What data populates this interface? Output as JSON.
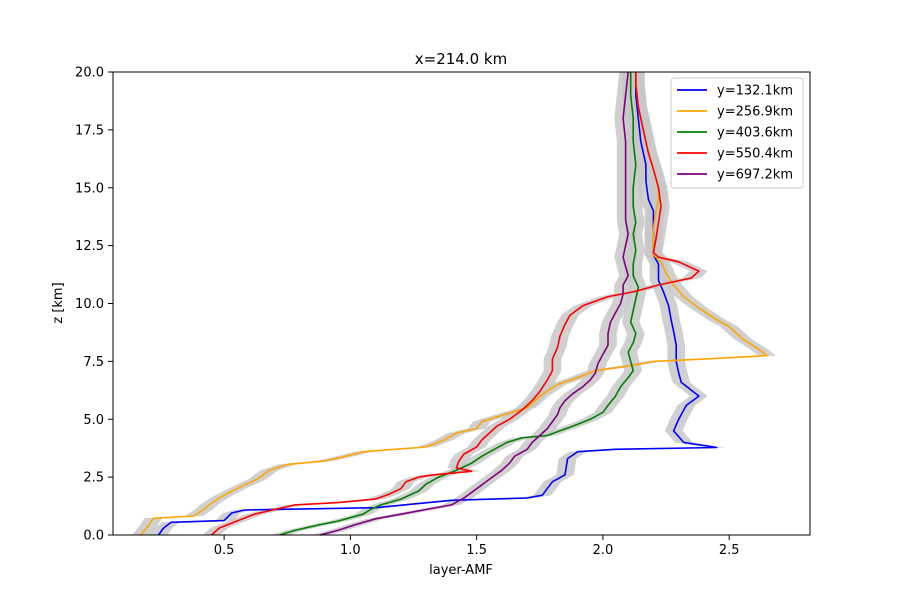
{
  "chart_data": {
    "type": "line",
    "title": "x=214.0 km",
    "xlabel": "layer-AMF",
    "ylabel": "z [km]",
    "xlim": [
      0.06,
      2.82
    ],
    "ylim": [
      0,
      20
    ],
    "xticks": [
      "0.5",
      "1.0",
      "1.5",
      "2.0",
      "2.5"
    ],
    "xtick_values": [
      0.5,
      1.0,
      1.5,
      2.0,
      2.5
    ],
    "yticks": [
      "0.0",
      "2.5",
      "5.0",
      "7.5",
      "10.0",
      "12.5",
      "15.0",
      "17.5",
      "20.0"
    ],
    "ytick_values": [
      0,
      2.5,
      5,
      7.5,
      10,
      12.5,
      15,
      17.5,
      20
    ],
    "grid": false,
    "legend_position": "top-right",
    "uncertainty_band": {
      "color": "#c8c8c8",
      "halfwidth": 0.035
    },
    "series": [
      {
        "name": "y=132.1km",
        "color": "#0000ff",
        "points": [
          [
            0.24,
            0.0
          ],
          [
            0.26,
            0.3
          ],
          [
            0.29,
            0.55
          ],
          [
            0.5,
            0.62
          ],
          [
            0.53,
            0.95
          ],
          [
            0.58,
            1.08
          ],
          [
            1.1,
            1.18
          ],
          [
            1.4,
            1.5
          ],
          [
            1.7,
            1.6
          ],
          [
            1.76,
            1.72
          ],
          [
            1.8,
            2.3
          ],
          [
            1.85,
            2.6
          ],
          [
            1.86,
            3.3
          ],
          [
            1.9,
            3.6
          ],
          [
            2.05,
            3.7
          ],
          [
            2.45,
            3.78
          ],
          [
            2.32,
            4.0
          ],
          [
            2.28,
            4.5
          ],
          [
            2.3,
            5.0
          ],
          [
            2.33,
            5.6
          ],
          [
            2.38,
            6.0
          ],
          [
            2.31,
            6.6
          ],
          [
            2.3,
            7.0
          ],
          [
            2.29,
            7.5
          ],
          [
            2.29,
            8.2
          ],
          [
            2.28,
            8.8
          ],
          [
            2.27,
            9.3
          ],
          [
            2.26,
            9.9
          ],
          [
            2.24,
            10.5
          ],
          [
            2.22,
            11.0
          ],
          [
            2.22,
            11.7
          ],
          [
            2.2,
            12.1
          ],
          [
            2.2,
            12.6
          ],
          [
            2.2,
            13.2
          ],
          [
            2.2,
            14.0
          ],
          [
            2.18,
            14.5
          ],
          [
            2.17,
            15.3
          ],
          [
            2.17,
            16.0
          ],
          [
            2.15,
            17.0
          ],
          [
            2.14,
            18.0
          ],
          [
            2.13,
            19.0
          ],
          [
            2.13,
            20.0
          ]
        ]
      },
      {
        "name": "y=256.9km",
        "color": "#ffa500",
        "points": [
          [
            0.17,
            0.0
          ],
          [
            0.2,
            0.4
          ],
          [
            0.22,
            0.72
          ],
          [
            0.38,
            0.82
          ],
          [
            0.42,
            1.1
          ],
          [
            0.44,
            1.3
          ],
          [
            0.48,
            1.6
          ],
          [
            0.55,
            2.0
          ],
          [
            0.63,
            2.4
          ],
          [
            0.68,
            2.8
          ],
          [
            0.75,
            3.05
          ],
          [
            0.9,
            3.2
          ],
          [
            1.0,
            3.45
          ],
          [
            1.05,
            3.6
          ],
          [
            1.3,
            3.8
          ],
          [
            1.37,
            4.1
          ],
          [
            1.42,
            4.4
          ],
          [
            1.5,
            4.6
          ],
          [
            1.52,
            4.9
          ],
          [
            1.58,
            5.1
          ],
          [
            1.7,
            5.5
          ],
          [
            1.75,
            6.0
          ],
          [
            1.82,
            6.5
          ],
          [
            1.9,
            6.8
          ],
          [
            1.97,
            7.1
          ],
          [
            2.1,
            7.3
          ],
          [
            2.2,
            7.5
          ],
          [
            2.4,
            7.6
          ],
          [
            2.65,
            7.75
          ],
          [
            2.62,
            8.0
          ],
          [
            2.55,
            8.5
          ],
          [
            2.5,
            9.0
          ],
          [
            2.45,
            9.3
          ],
          [
            2.38,
            9.8
          ],
          [
            2.32,
            10.3
          ],
          [
            2.28,
            10.8
          ],
          [
            2.25,
            11.3
          ],
          [
            2.23,
            11.8
          ],
          [
            2.2,
            12.1
          ],
          [
            2.2,
            12.7
          ],
          [
            2.2,
            13.2
          ],
          [
            2.21,
            14.0
          ],
          [
            2.22,
            14.5
          ],
          [
            2.22,
            15.0
          ],
          [
            2.2,
            15.8
          ],
          [
            2.18,
            16.5
          ],
          [
            2.16,
            17.5
          ],
          [
            2.14,
            18.5
          ],
          [
            2.13,
            19.5
          ],
          [
            2.13,
            20.0
          ]
        ]
      },
      {
        "name": "y=403.6km",
        "color": "#008000",
        "points": [
          [
            0.72,
            0.0
          ],
          [
            0.78,
            0.2
          ],
          [
            0.88,
            0.45
          ],
          [
            0.95,
            0.6
          ],
          [
            1.05,
            0.9
          ],
          [
            1.08,
            1.1
          ],
          [
            1.12,
            1.3
          ],
          [
            1.2,
            1.55
          ],
          [
            1.27,
            1.9
          ],
          [
            1.3,
            2.2
          ],
          [
            1.35,
            2.5
          ],
          [
            1.42,
            2.8
          ],
          [
            1.48,
            3.1
          ],
          [
            1.52,
            3.4
          ],
          [
            1.57,
            3.7
          ],
          [
            1.62,
            4.0
          ],
          [
            1.68,
            4.2
          ],
          [
            1.78,
            4.3
          ],
          [
            1.83,
            4.5
          ],
          [
            1.88,
            4.7
          ],
          [
            1.95,
            5.0
          ],
          [
            2.0,
            5.3
          ],
          [
            2.02,
            5.6
          ],
          [
            2.05,
            6.0
          ],
          [
            2.07,
            6.4
          ],
          [
            2.1,
            6.8
          ],
          [
            2.12,
            7.1
          ],
          [
            2.11,
            7.5
          ],
          [
            2.1,
            7.9
          ],
          [
            2.12,
            8.3
          ],
          [
            2.13,
            8.7
          ],
          [
            2.11,
            9.2
          ],
          [
            2.12,
            9.7
          ],
          [
            2.13,
            10.2
          ],
          [
            2.14,
            10.7
          ],
          [
            2.12,
            11.2
          ],
          [
            2.12,
            11.7
          ],
          [
            2.13,
            12.3
          ],
          [
            2.12,
            13.0
          ],
          [
            2.13,
            13.5
          ],
          [
            2.12,
            14.2
          ],
          [
            2.12,
            15.0
          ],
          [
            2.13,
            16.0
          ],
          [
            2.12,
            17.0
          ],
          [
            2.12,
            18.0
          ],
          [
            2.11,
            19.0
          ],
          [
            2.11,
            20.0
          ]
        ]
      },
      {
        "name": "y=550.4km",
        "color": "#ff0000",
        "points": [
          [
            0.45,
            0.0
          ],
          [
            0.48,
            0.3
          ],
          [
            0.55,
            0.6
          ],
          [
            0.62,
            0.9
          ],
          [
            0.7,
            1.1
          ],
          [
            0.78,
            1.3
          ],
          [
            0.95,
            1.4
          ],
          [
            1.1,
            1.55
          ],
          [
            1.15,
            1.75
          ],
          [
            1.2,
            2.0
          ],
          [
            1.22,
            2.3
          ],
          [
            1.27,
            2.5
          ],
          [
            1.33,
            2.6
          ],
          [
            1.48,
            2.75
          ],
          [
            1.42,
            2.9
          ],
          [
            1.43,
            3.2
          ],
          [
            1.45,
            3.5
          ],
          [
            1.5,
            3.8
          ],
          [
            1.52,
            4.1
          ],
          [
            1.55,
            4.4
          ],
          [
            1.58,
            4.7
          ],
          [
            1.63,
            5.0
          ],
          [
            1.68,
            5.4
          ],
          [
            1.72,
            5.8
          ],
          [
            1.75,
            6.2
          ],
          [
            1.78,
            6.7
          ],
          [
            1.8,
            7.1
          ],
          [
            1.8,
            7.6
          ],
          [
            1.82,
            8.1
          ],
          [
            1.83,
            8.6
          ],
          [
            1.85,
            9.1
          ],
          [
            1.87,
            9.5
          ],
          [
            1.92,
            9.9
          ],
          [
            2.02,
            10.3
          ],
          [
            2.12,
            10.5
          ],
          [
            2.22,
            10.8
          ],
          [
            2.35,
            11.1
          ],
          [
            2.38,
            11.4
          ],
          [
            2.3,
            11.8
          ],
          [
            2.22,
            12.0
          ],
          [
            2.2,
            12.2
          ],
          [
            2.21,
            12.8
          ],
          [
            2.22,
            13.5
          ],
          [
            2.23,
            14.2
          ],
          [
            2.22,
            15.0
          ],
          [
            2.2,
            15.8
          ],
          [
            2.18,
            16.5
          ],
          [
            2.16,
            17.5
          ],
          [
            2.14,
            18.5
          ],
          [
            2.13,
            19.5
          ],
          [
            2.13,
            20.0
          ]
        ]
      },
      {
        "name": "y=697.2km",
        "color": "#800080",
        "points": [
          [
            0.88,
            0.0
          ],
          [
            0.95,
            0.2
          ],
          [
            1.02,
            0.45
          ],
          [
            1.1,
            0.7
          ],
          [
            1.2,
            0.9
          ],
          [
            1.3,
            1.1
          ],
          [
            1.4,
            1.3
          ],
          [
            1.45,
            1.6
          ],
          [
            1.5,
            2.0
          ],
          [
            1.55,
            2.4
          ],
          [
            1.6,
            2.8
          ],
          [
            1.63,
            3.1
          ],
          [
            1.65,
            3.4
          ],
          [
            1.7,
            3.7
          ],
          [
            1.72,
            4.0
          ],
          [
            1.75,
            4.3
          ],
          [
            1.78,
            4.6
          ],
          [
            1.8,
            4.9
          ],
          [
            1.82,
            5.2
          ],
          [
            1.83,
            5.5
          ],
          [
            1.85,
            5.8
          ],
          [
            1.88,
            6.1
          ],
          [
            1.92,
            6.4
          ],
          [
            1.95,
            6.7
          ],
          [
            1.97,
            7.0
          ],
          [
            1.98,
            7.4
          ],
          [
            2.0,
            7.8
          ],
          [
            2.02,
            8.2
          ],
          [
            2.02,
            8.7
          ],
          [
            2.03,
            9.2
          ],
          [
            2.05,
            9.6
          ],
          [
            2.07,
            10.0
          ],
          [
            2.08,
            10.4
          ],
          [
            2.08,
            10.8
          ],
          [
            2.1,
            11.2
          ],
          [
            2.09,
            11.6
          ],
          [
            2.08,
            12.0
          ],
          [
            2.09,
            12.5
          ],
          [
            2.1,
            13.0
          ],
          [
            2.09,
            13.6
          ],
          [
            2.09,
            14.2
          ],
          [
            2.09,
            15.0
          ],
          [
            2.09,
            16.0
          ],
          [
            2.09,
            17.0
          ],
          [
            2.08,
            18.0
          ],
          [
            2.09,
            19.0
          ],
          [
            2.1,
            20.0
          ]
        ]
      }
    ]
  }
}
